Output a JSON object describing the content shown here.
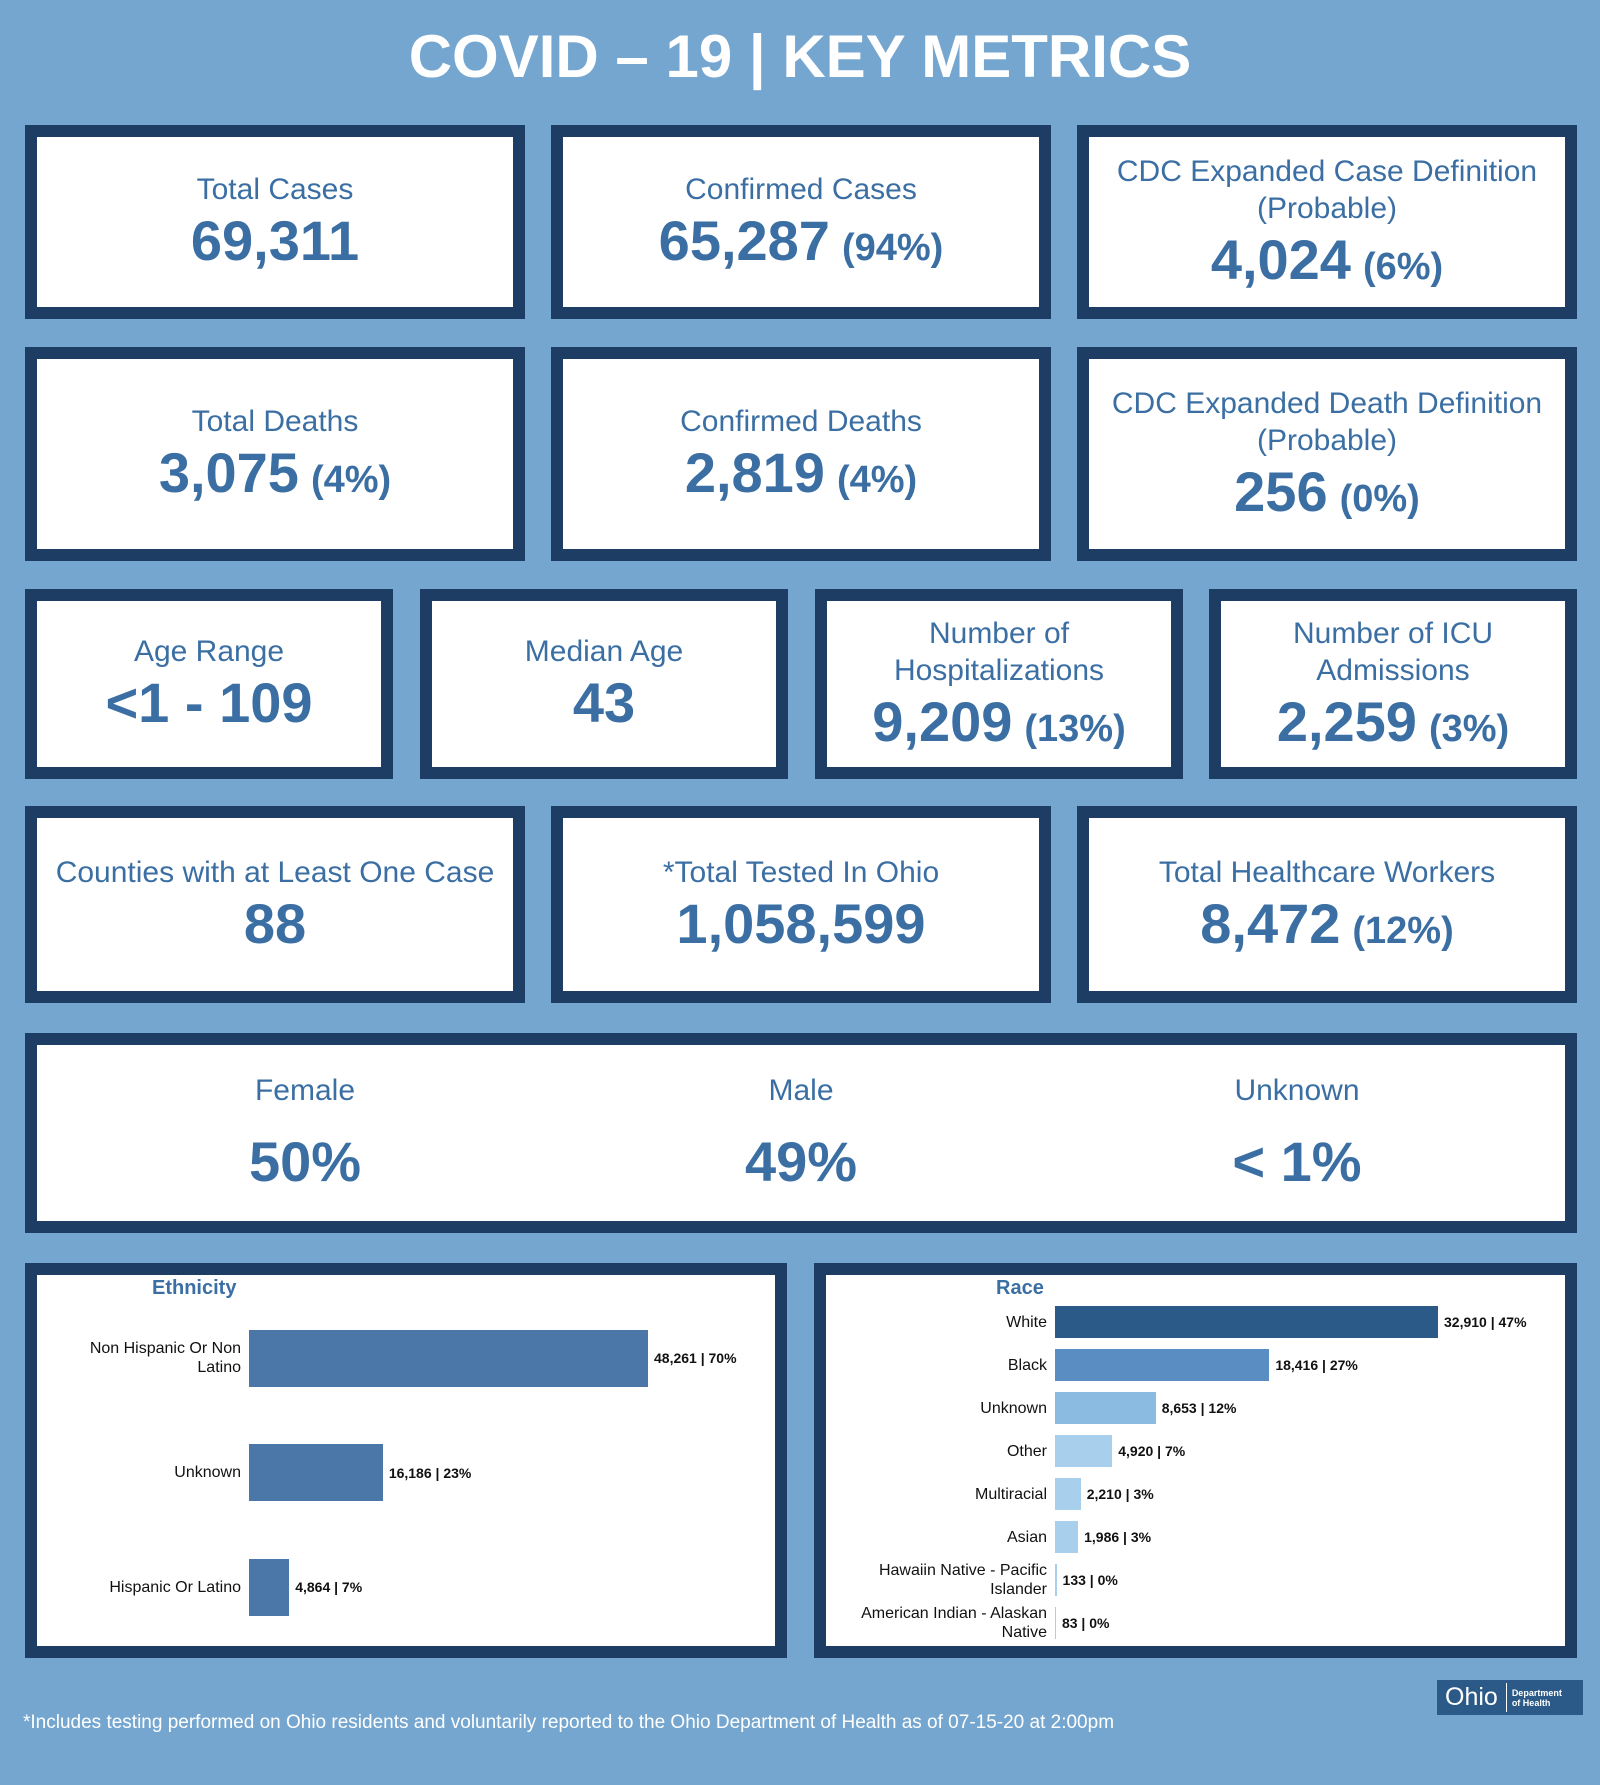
{
  "title": "COVID – 19 | KEY METRICS",
  "metrics": [
    {
      "label": "Total Cases",
      "value": "69,311"
    },
    {
      "label": "Confirmed Cases",
      "value": "65,287",
      "percent": "(94%)"
    },
    {
      "label": "CDC Expanded Case Definition (Probable)",
      "value": "4,024",
      "percent": "(6%)"
    },
    {
      "label": "Total Deaths",
      "value": "3,075",
      "percent": "(4%)"
    },
    {
      "label": "Confirmed Deaths",
      "value": "2,819",
      "percent": "(4%)"
    },
    {
      "label": "CDC Expanded Death Definition (Probable)",
      "value": "256",
      "percent": "(0%)"
    },
    {
      "label": "Age Range",
      "value": "<1 - 109"
    },
    {
      "label": "Median Age",
      "value": "43"
    },
    {
      "label": "Number of Hospitalizations",
      "value": "9,209",
      "percent": "(13%)"
    },
    {
      "label": "Number of ICU Admissions",
      "value": "2,259",
      "percent": "(3%)"
    },
    {
      "label": "Counties with at Least One Case",
      "value": "88"
    },
    {
      "label": "*Total Tested In Ohio",
      "value": "1,058,599"
    },
    {
      "label": "Total Healthcare Workers",
      "value": "8,472",
      "percent": "(12%)"
    }
  ],
  "sex": [
    {
      "label": "Female",
      "value": "50%"
    },
    {
      "label": "Male",
      "value": "49%"
    },
    {
      "label": "Unknown",
      "value": "< 1%"
    }
  ],
  "chart_data": [
    {
      "type": "bar",
      "title": "Ethnicity",
      "categories": [
        "Non Hispanic Or Non Latino",
        "Unknown",
        "Hispanic Or Latino"
      ],
      "values": [
        48261,
        16186,
        4864
      ],
      "value_labels": [
        "48,261 | 70%",
        "16,186 | 23%",
        "4,864 | 7%"
      ],
      "color": "#4a77a8"
    },
    {
      "type": "bar",
      "title": "Race",
      "categories": [
        "White",
        "Black",
        "Unknown",
        "Other",
        "Multiracial",
        "Asian",
        "Hawaiin Native - Pacific Islander",
        "American Indian - Alaskan Native"
      ],
      "values": [
        32910,
        18416,
        8653,
        4920,
        2210,
        1986,
        133,
        83
      ],
      "value_labels": [
        "32,910 | 47%",
        "18,416 | 27%",
        "8,653 | 12%",
        "4,920 | 7%",
        "2,210 | 3%",
        "1,986 | 3%",
        "133 | 0%",
        "83 | 0%"
      ],
      "colors": [
        "#2c5a88",
        "#5a8ec3",
        "#8bbbe0",
        "#a8cfeb",
        "#a8cfeb",
        "#a8cfeb",
        "#a8cfeb",
        "#a8cfeb"
      ]
    }
  ],
  "footnote": "*Includes testing performed on Ohio residents and voluntarily reported to the Ohio Department of Health as of 07-15-20 at 2:00pm",
  "logo": {
    "name": "Ohio",
    "subtitle": "Department of Health"
  }
}
